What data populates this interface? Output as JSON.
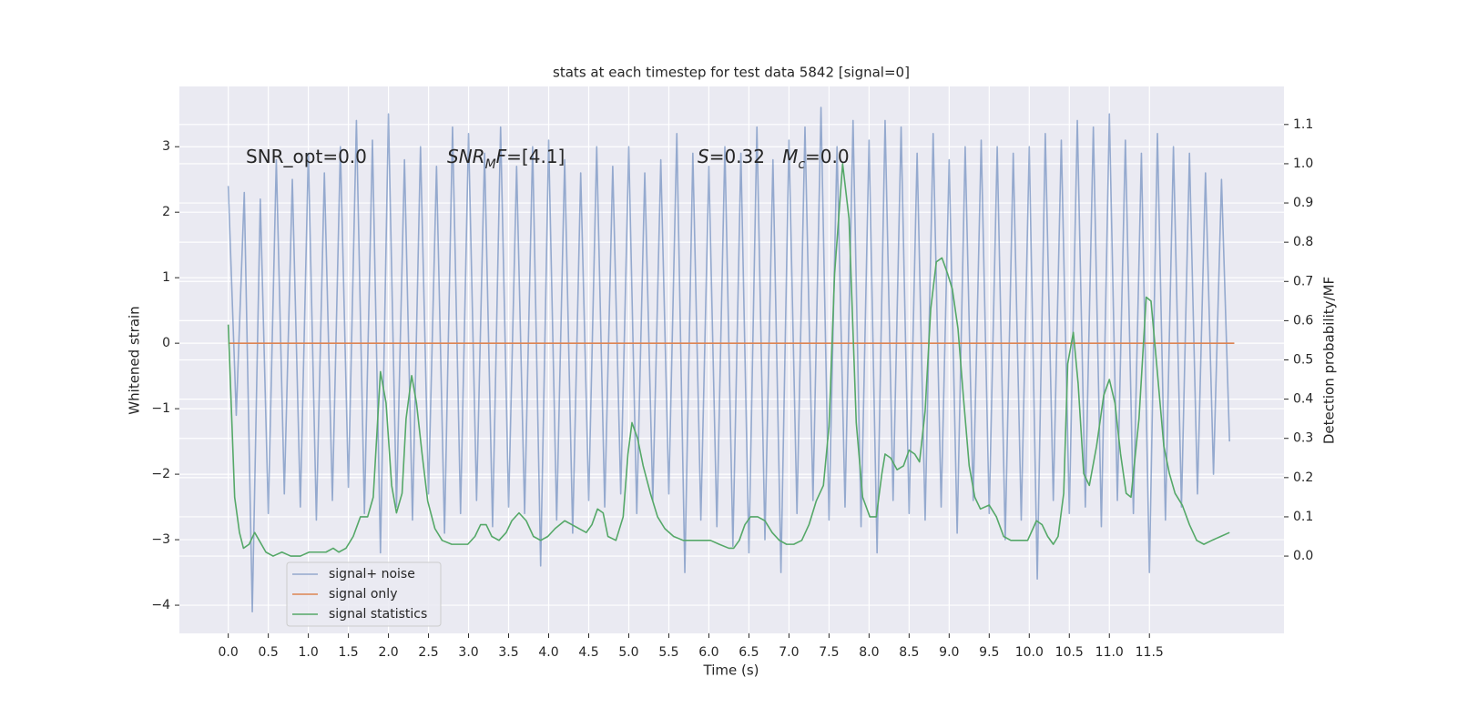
{
  "chart_data": {
    "type": "line",
    "title": "stats at each timestep for test data 5842 [signal=0]",
    "xlabel": "Time (s)",
    "ylabel": "Whitened strain",
    "y2label": "Detection probability/MF",
    "annotations": [
      {
        "parts": [
          {
            "text": "SNR_opt=0.0"
          }
        ]
      },
      {
        "parts": [
          {
            "text": "SNR",
            "italic": true
          },
          {
            "text": "M",
            "italic": true,
            "sub": true
          },
          {
            "text": "F",
            "italic": true
          },
          {
            "text": "=[4.1]"
          }
        ]
      },
      {
        "parts": [
          {
            "text": "S",
            "italic": true
          },
          {
            "text": "=0.32   "
          },
          {
            "text": "M",
            "italic": true
          },
          {
            "text": "c",
            "italic": true,
            "sub": true
          },
          {
            "text": "=0.0"
          }
        ]
      }
    ],
    "xlim": [
      -0.61,
      13.18
    ],
    "ylim": [
      -4.43,
      3.92
    ],
    "y2lim": [
      -0.197,
      1.197
    ],
    "xticks": [
      {
        "value": 0,
        "label": "0.0"
      },
      0.5,
      {
        "value": 1,
        "label": "1.0"
      },
      1.5,
      {
        "value": 2,
        "label": "2.0"
      },
      2.5,
      {
        "value": 3,
        "label": "3.0"
      },
      3.5,
      {
        "value": 4,
        "label": "4.0"
      },
      4.5,
      {
        "value": 5,
        "label": "5.0"
      },
      5.5,
      {
        "value": 6,
        "label": "6.0"
      },
      6.5,
      {
        "value": 7,
        "label": "7.0"
      },
      7.5,
      {
        "value": 8,
        "label": "8.0"
      },
      8.5,
      {
        "value": 9,
        "label": "9.0"
      },
      9.5,
      {
        "value": 10,
        "label": "10.0"
      },
      10.5,
      {
        "value": 11,
        "label": "11.0"
      },
      11.5
    ],
    "yticks": [
      {
        "value": -4,
        "label": "−4"
      },
      {
        "value": -3,
        "label": "−3"
      },
      {
        "value": -2,
        "label": "−2"
      },
      {
        "value": -1,
        "label": "−1"
      },
      0,
      1,
      2,
      3
    ],
    "y2ticks": [
      {
        "value": 0,
        "label": "0.0"
      },
      0.1,
      0.2,
      0.3,
      0.4,
      0.5,
      0.6,
      0.7,
      0.8,
      0.9,
      {
        "value": 1,
        "label": "1.0"
      },
      1.1
    ],
    "grid": true,
    "legend": "lower left",
    "series": [
      {
        "name": "signal+ noise",
        "color": "#4c72b0",
        "alpha": 0.55,
        "x": [
          0,
          0.1,
          0.2,
          0.3,
          0.4,
          0.5,
          0.6,
          0.7,
          0.8,
          0.9,
          1,
          1.1,
          1.2,
          1.3,
          1.4,
          1.5,
          1.6,
          1.7,
          1.8,
          1.9,
          2,
          2.1,
          2.2,
          2.3,
          2.4,
          2.5,
          2.6,
          2.7,
          2.8,
          2.9,
          3,
          3.1,
          3.2,
          3.3,
          3.4,
          3.5,
          3.6,
          3.7,
          3.8,
          3.9,
          4,
          4.1,
          4.2,
          4.3,
          4.4,
          4.5,
          4.6,
          4.7,
          4.8,
          4.9,
          5,
          5.1,
          5.2,
          5.3,
          5.4,
          5.5,
          5.6,
          5.7,
          5.8,
          5.9,
          6,
          6.1,
          6.2,
          6.3,
          6.4,
          6.5,
          6.6,
          6.7,
          6.8,
          6.9,
          7,
          7.1,
          7.2,
          7.3,
          7.4,
          7.5,
          7.6,
          7.7,
          7.8,
          7.9,
          8,
          8.1,
          8.2,
          8.3,
          8.4,
          8.5,
          8.6,
          8.7,
          8.8,
          8.9,
          9,
          9.1,
          9.2,
          9.3,
          9.4,
          9.5,
          9.6,
          9.7,
          9.8,
          9.9,
          10,
          10.1,
          10.2,
          10.3,
          10.4,
          10.5,
          10.6,
          10.7,
          10.8,
          10.9,
          11,
          11.1,
          11.2,
          11.3,
          11.4,
          11.5,
          11.6,
          11.7,
          11.8,
          11.9,
          12,
          12.1,
          12.2,
          12.3,
          12.4,
          12.5
        ],
        "values": [
          2.4,
          -1.1,
          2.3,
          -4.1,
          2.2,
          -2.6,
          2.8,
          -2.3,
          2.5,
          -2.5,
          2.9,
          -2.7,
          2.6,
          -2.4,
          3.0,
          -2.2,
          3.4,
          -2.6,
          3.1,
          -3.2,
          3.5,
          -2.5,
          2.8,
          -2.7,
          3.0,
          -2.3,
          2.7,
          -2.9,
          3.3,
          -2.6,
          3.2,
          -2.4,
          2.9,
          -2.8,
          3.3,
          -2.5,
          2.7,
          -2.6,
          3.0,
          -3.4,
          3.1,
          -2.7,
          2.8,
          -2.9,
          2.6,
          -2.4,
          3.0,
          -2.5,
          2.7,
          -2.3,
          3.0,
          -2.6,
          2.6,
          -2.4,
          2.8,
          -2.3,
          3.2,
          -3.5,
          2.9,
          -2.7,
          2.7,
          -2.8,
          3.0,
          -3.1,
          2.9,
          -3.2,
          3.3,
          -3.0,
          2.8,
          -3.5,
          3.1,
          -2.6,
          3.3,
          -2.4,
          3.6,
          -2.7,
          3.0,
          -2.5,
          3.4,
          -2.8,
          3.1,
          -3.2,
          3.4,
          -2.4,
          3.3,
          -2.6,
          2.9,
          -2.7,
          3.2,
          -2.5,
          2.8,
          -2.9,
          3.0,
          -2.4,
          3.1,
          -2.6,
          3.0,
          -3.0,
          2.9,
          -2.7,
          3.0,
          -3.6,
          3.2,
          -2.4,
          3.1,
          -2.6,
          3.4,
          -2.5,
          3.3,
          -2.8,
          3.5,
          -2.4,
          3.1,
          -2.6,
          2.9,
          -3.5,
          3.2,
          -2.7,
          3.0,
          -2.5,
          2.9,
          -2.3,
          2.6,
          -2.0,
          2.5,
          -1.5
        ]
      },
      {
        "name": "signal only",
        "color": "#dd8452",
        "alpha": 1,
        "x": [
          0,
          12.56
        ],
        "values": [
          0,
          0
        ]
      },
      {
        "name": "signal statistics",
        "color": "#55a868",
        "alpha": 1,
        "axis": "y2",
        "x": [
          0,
          0.08,
          0.14,
          0.19,
          0.26,
          0.33,
          0.47,
          0.56,
          0.67,
          0.78,
          0.9,
          1.01,
          1.15,
          1.22,
          1.31,
          1.38,
          1.47,
          1.56,
          1.65,
          1.74,
          1.81,
          1.9,
          1.97,
          2.04,
          2.1,
          2.17,
          2.22,
          2.29,
          2.35,
          2.42,
          2.49,
          2.58,
          2.67,
          2.79,
          2.9,
          2.99,
          3.08,
          3.15,
          3.22,
          3.29,
          3.38,
          3.47,
          3.54,
          3.63,
          3.72,
          3.81,
          3.9,
          3.99,
          4.08,
          4.2,
          4.29,
          4.38,
          4.47,
          4.54,
          4.61,
          4.68,
          4.74,
          4.84,
          4.93,
          4.99,
          5.04,
          5.11,
          5.18,
          5.27,
          5.36,
          5.45,
          5.56,
          5.68,
          5.79,
          5.9,
          6.02,
          6.13,
          6.25,
          6.31,
          6.38,
          6.45,
          6.52,
          6.61,
          6.7,
          6.79,
          6.88,
          6.97,
          7.06,
          7.16,
          7.25,
          7.34,
          7.43,
          7.5,
          7.57,
          7.67,
          7.75,
          7.84,
          7.92,
          8.01,
          8.09,
          8.16,
          8.2,
          8.27,
          8.35,
          8.43,
          8.5,
          8.57,
          8.63,
          8.7,
          8.77,
          8.84,
          8.91,
          8.98,
          9.04,
          9.11,
          9.18,
          9.25,
          9.32,
          9.39,
          9.5,
          9.59,
          9.68,
          9.77,
          9.89,
          9.98,
          10.09,
          10.16,
          10.23,
          10.3,
          10.36,
          10.43,
          10.48,
          10.55,
          10.61,
          10.68,
          10.75,
          10.84,
          10.93,
          11,
          11.07,
          11.14,
          11.21,
          11.27,
          11.37,
          11.46,
          11.52,
          11.59,
          11.68,
          11.75,
          11.82,
          11.91,
          12,
          12.09,
          12.18,
          12.28,
          12.39,
          12.5
        ],
        "values": [
          0.59,
          0.15,
          0.06,
          0.02,
          0.03,
          0.06,
          0.01,
          0,
          0.01,
          0,
          0,
          0.01,
          0.01,
          0.01,
          0.02,
          0.01,
          0.02,
          0.05,
          0.1,
          0.1,
          0.15,
          0.47,
          0.39,
          0.18,
          0.11,
          0.16,
          0.35,
          0.46,
          0.39,
          0.26,
          0.14,
          0.07,
          0.04,
          0.03,
          0.03,
          0.03,
          0.05,
          0.08,
          0.08,
          0.05,
          0.04,
          0.06,
          0.09,
          0.11,
          0.09,
          0.05,
          0.04,
          0.05,
          0.07,
          0.09,
          0.08,
          0.07,
          0.06,
          0.08,
          0.12,
          0.11,
          0.05,
          0.04,
          0.1,
          0.26,
          0.34,
          0.3,
          0.23,
          0.16,
          0.1,
          0.07,
          0.05,
          0.04,
          0.04,
          0.04,
          0.04,
          0.03,
          0.02,
          0.02,
          0.04,
          0.08,
          0.1,
          0.1,
          0.09,
          0.06,
          0.04,
          0.03,
          0.03,
          0.04,
          0.08,
          0.14,
          0.18,
          0.33,
          0.72,
          1.0,
          0.86,
          0.34,
          0.15,
          0.1,
          0.1,
          0.21,
          0.26,
          0.25,
          0.22,
          0.23,
          0.27,
          0.26,
          0.24,
          0.37,
          0.63,
          0.75,
          0.76,
          0.72,
          0.68,
          0.58,
          0.4,
          0.23,
          0.15,
          0.12,
          0.13,
          0.1,
          0.05,
          0.04,
          0.04,
          0.04,
          0.09,
          0.08,
          0.05,
          0.03,
          0.05,
          0.16,
          0.49,
          0.57,
          0.44,
          0.21,
          0.18,
          0.28,
          0.41,
          0.45,
          0.39,
          0.26,
          0.16,
          0.15,
          0.35,
          0.66,
          0.65,
          0.49,
          0.28,
          0.21,
          0.16,
          0.13,
          0.08,
          0.04,
          0.03,
          0.04,
          0.05,
          0.06
        ]
      }
    ]
  }
}
